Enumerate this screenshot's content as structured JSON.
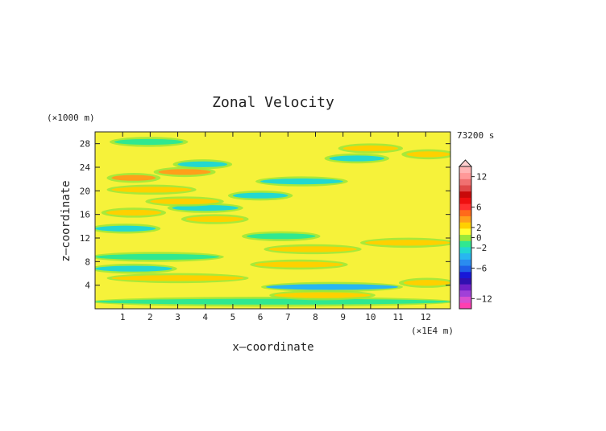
{
  "chart_data": {
    "type": "heatmap",
    "title": "Zonal Velocity",
    "xlabel": "x—coordinate",
    "ylabel": "z—coordinate",
    "x_unit": "(×1E4 m)",
    "y_unit": "(×1000 m)",
    "time_label": "73200 s",
    "xlim": [
      0,
      12.9
    ],
    "ylim": [
      0,
      30
    ],
    "x_ticks": [
      "1",
      "2",
      "3",
      "4",
      "5",
      "6",
      "7",
      "8",
      "9",
      "10",
      "11",
      "12"
    ],
    "y_ticks": [
      "4",
      "8",
      "12",
      "16",
      "20",
      "24",
      "28"
    ],
    "colorbar": {
      "labels": [
        "12",
        "6",
        "2",
        "0",
        "−2",
        "−6",
        "−12"
      ],
      "label_values": [
        12,
        6,
        2,
        0,
        -2,
        -6,
        -12
      ],
      "range": [
        -14,
        14
      ],
      "colors": [
        "#ff3fb0",
        "#d94fd0",
        "#a040d8",
        "#7020c8",
        "#3010b0",
        "#1818d8",
        "#1f5fe8",
        "#2a8cf0",
        "#28b6f0",
        "#22d8d0",
        "#30e890",
        "#9ae83a",
        "#ffff33",
        "#ffd000",
        "#ff9f1a",
        "#ff6a1a",
        "#ff3030",
        "#ee1010",
        "#c80a0a",
        "#e04848",
        "#f07070",
        "#ff9898",
        "#ffb4b4"
      ]
    },
    "bands": [
      {
        "z": 1.2,
        "x": [
          0.0,
          12.9
        ],
        "value": -1.5
      },
      {
        "z": 2.3,
        "x": [
          6.5,
          10.0
        ],
        "value": 2.5
      },
      {
        "z": 3.7,
        "x": [
          6.2,
          11.0
        ],
        "value": -4.0
      },
      {
        "z": 4.4,
        "x": [
          11.2,
          12.9
        ],
        "value": 3.0
      },
      {
        "z": 5.2,
        "x": [
          0.6,
          5.4
        ],
        "value": 3.0
      },
      {
        "z": 6.8,
        "x": [
          0.0,
          2.8
        ],
        "value": -2.5
      },
      {
        "z": 7.5,
        "x": [
          5.8,
          9.0
        ],
        "value": 3.0
      },
      {
        "z": 8.8,
        "x": [
          0.0,
          4.5
        ],
        "value": -1.5
      },
      {
        "z": 10.1,
        "x": [
          6.3,
          9.5
        ],
        "value": 3.0
      },
      {
        "z": 11.2,
        "x": [
          9.8,
          12.9
        ],
        "value": 2.5
      },
      {
        "z": 12.3,
        "x": [
          5.5,
          8.0
        ],
        "value": -1.5
      },
      {
        "z": 13.6,
        "x": [
          0.0,
          2.2
        ],
        "value": -2.5
      },
      {
        "z": 15.2,
        "x": [
          3.3,
          5.4
        ],
        "value": 2.5
      },
      {
        "z": 16.3,
        "x": [
          0.4,
          2.4
        ],
        "value": 3.0
      },
      {
        "z": 17.1,
        "x": [
          2.8,
          5.2
        ],
        "value": -2.0
      },
      {
        "z": 18.2,
        "x": [
          2.0,
          4.5
        ],
        "value": 2.5
      },
      {
        "z": 19.2,
        "x": [
          5.0,
          7.0
        ],
        "value": -2.5
      },
      {
        "z": 20.2,
        "x": [
          0.6,
          3.5
        ],
        "value": 3.0
      },
      {
        "z": 21.6,
        "x": [
          6.0,
          9.0
        ],
        "value": -2.0
      },
      {
        "z": 22.2,
        "x": [
          0.6,
          2.2
        ],
        "value": 4.0
      },
      {
        "z": 23.2,
        "x": [
          2.3,
          4.2
        ],
        "value": 3.5
      },
      {
        "z": 24.5,
        "x": [
          3.0,
          4.8
        ],
        "value": -3.0
      },
      {
        "z": 25.5,
        "x": [
          8.5,
          10.5
        ],
        "value": -2.0
      },
      {
        "z": 26.2,
        "x": [
          11.3,
          12.9
        ],
        "value": 3.0
      },
      {
        "z": 27.2,
        "x": [
          9.0,
          11.0
        ],
        "value": 2.0
      },
      {
        "z": 28.3,
        "x": [
          0.7,
          3.2
        ],
        "value": -1.5
      }
    ]
  }
}
